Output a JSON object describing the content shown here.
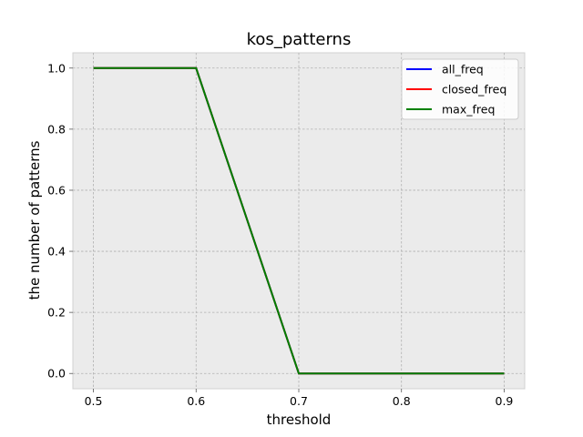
{
  "chart_data": {
    "type": "line",
    "title": "kos_patterns",
    "xlabel": "threshold",
    "ylabel": "the number of patterns",
    "x": [
      0.5,
      0.6,
      0.7,
      0.8,
      0.9
    ],
    "xlim": [
      0.48,
      0.92
    ],
    "ylim": [
      -0.05,
      1.05
    ],
    "xticks": [
      "0.5",
      "0.6",
      "0.7",
      "0.8",
      "0.9"
    ],
    "yticks": [
      "0.0",
      "0.2",
      "0.4",
      "0.6",
      "0.8",
      "1.0"
    ],
    "grid": true,
    "legend_position": "top-right",
    "series": [
      {
        "name": "all_freq",
        "color": "#0000ff",
        "values": [
          1,
          1,
          0,
          0,
          0
        ]
      },
      {
        "name": "closed_freq",
        "color": "#ff0000",
        "values": [
          1,
          1,
          0,
          0,
          0
        ]
      },
      {
        "name": "max_freq",
        "color": "#008000",
        "values": [
          1,
          1,
          0,
          0,
          0
        ]
      }
    ]
  }
}
